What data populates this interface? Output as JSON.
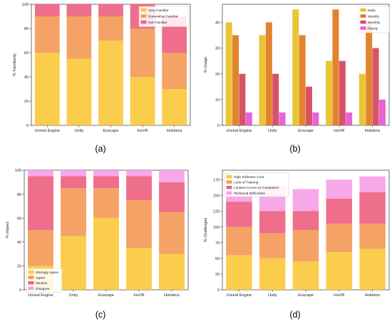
{
  "colors": {
    "yellow": "#fbc93d",
    "orange": "#f49a59",
    "pink": "#ee6282",
    "magenta": "#e85bd6",
    "light_pink": "#f6a1e6",
    "daily": "#e8c12a",
    "weekly": "#e07c23",
    "monthly": "#d54a5f",
    "rarely": "#e85bd6"
  },
  "chart_data": [
    {
      "type": "bar",
      "stacked": true,
      "panel_label": "(a)",
      "categories": [
        "Unreal Engine",
        "Unity",
        "Enscape",
        "IrisVR",
        "Hololens"
      ],
      "ylabel": "% Familiarity",
      "ylim": [
        0,
        100
      ],
      "yticks": [
        0,
        20,
        40,
        60,
        80,
        100
      ],
      "legend_position": "top-right",
      "series": [
        {
          "name": "Very Familiar",
          "values": [
            60,
            55,
            70,
            40,
            30
          ]
        },
        {
          "name": "Somewhat Familiar",
          "values": [
            30,
            35,
            20,
            40,
            30
          ]
        },
        {
          "name": "Not Familiar",
          "values": [
            10,
            10,
            10,
            20,
            30
          ]
        }
      ]
    },
    {
      "type": "bar",
      "stacked": false,
      "panel_label": "(b)",
      "categories": [
        "Unreal Engine",
        "Unity",
        "Enscape",
        "IrisVR",
        "Hololens"
      ],
      "ylabel": "% Usage",
      "ylim": [
        0,
        47
      ],
      "yticks": [
        0,
        10,
        20,
        30,
        40
      ],
      "legend_position": "top-right",
      "series": [
        {
          "name": "Daily",
          "values": [
            40,
            35,
            45,
            25,
            20
          ]
        },
        {
          "name": "Weekly",
          "values": [
            35,
            40,
            35,
            45,
            40
          ]
        },
        {
          "name": "Monthly",
          "values": [
            20,
            20,
            15,
            25,
            30
          ]
        },
        {
          "name": "Rarely",
          "values": [
            5,
            5,
            5,
            5,
            10
          ]
        }
      ]
    },
    {
      "type": "bar",
      "stacked": true,
      "panel_label": "(c)",
      "categories": [
        "Unreal Engine",
        "Unity",
        "Enscape",
        "IrisVR",
        "Hololens"
      ],
      "ylabel": "% Impact",
      "ylim": [
        0,
        100
      ],
      "yticks": [
        0,
        20,
        40,
        60,
        80,
        100
      ],
      "legend_position": "bottom-left",
      "series": [
        {
          "name": "Strongly Agree",
          "values": [
            20,
            45,
            60,
            35,
            30
          ]
        },
        {
          "name": "Agree",
          "values": [
            30,
            40,
            25,
            40,
            35
          ]
        },
        {
          "name": "Neutral",
          "values": [
            45,
            10,
            10,
            20,
            25
          ]
        },
        {
          "name": "Disagree",
          "values": [
            5,
            5,
            5,
            5,
            10
          ]
        }
      ]
    },
    {
      "type": "bar",
      "stacked": true,
      "panel_label": "(d)",
      "categories": [
        "Unreal Engine",
        "Unity",
        "Enscape",
        "IrisVR",
        "Hololens"
      ],
      "ylabel": "% Challenges",
      "ylim": [
        0,
        190
      ],
      "yticks": [
        0,
        25,
        50,
        75,
        100,
        125,
        150,
        175
      ],
      "legend_position": "top-left",
      "series": [
        {
          "name": "High Software Cost",
          "values": [
            55,
            50,
            45,
            60,
            65
          ]
        },
        {
          "name": "Lack of Training",
          "values": [
            45,
            40,
            50,
            45,
            40
          ]
        },
        {
          "name": "Limited Access to Computers",
          "values": [
            40,
            35,
            30,
            40,
            50
          ]
        },
        {
          "name": "Technical Difficulties",
          "values": [
            15,
            40,
            35,
            30,
            25
          ]
        }
      ]
    }
  ]
}
